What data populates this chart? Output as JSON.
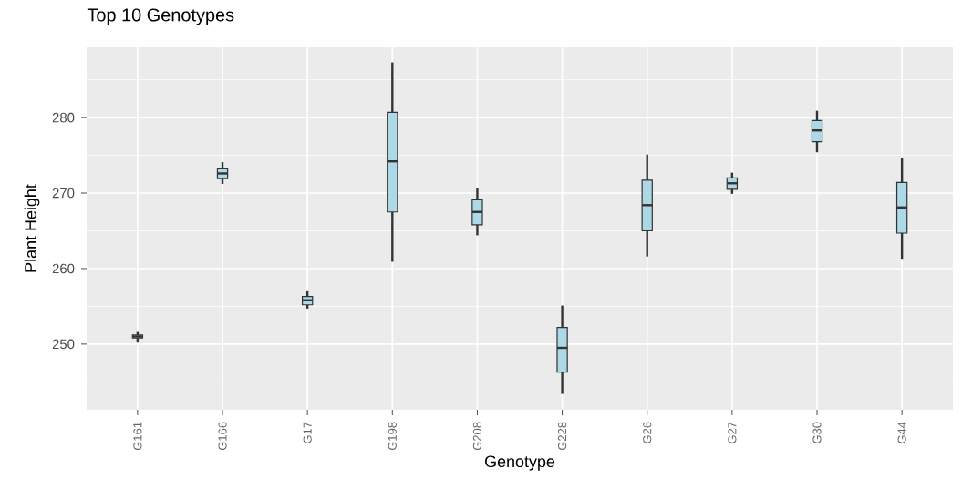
{
  "chart_data": {
    "type": "box",
    "title": "Top 10 Genotypes",
    "xlabel": "Genotype",
    "ylabel": "Plant Height",
    "categories": [
      "G161",
      "G166",
      "G17",
      "G198",
      "G208",
      "G228",
      "G26",
      "G27",
      "G30",
      "G44"
    ],
    "boxes": [
      {
        "low": 250.2,
        "q1": 250.8,
        "median": 251.0,
        "q3": 251.2,
        "high": 251.6
      },
      {
        "low": 271.2,
        "q1": 271.9,
        "median": 272.6,
        "q3": 273.2,
        "high": 274.1
      },
      {
        "low": 254.7,
        "q1": 255.2,
        "median": 255.8,
        "q3": 256.3,
        "high": 257.0
      },
      {
        "low": 260.9,
        "q1": 267.5,
        "median": 274.2,
        "q3": 280.7,
        "high": 287.3
      },
      {
        "low": 264.4,
        "q1": 265.8,
        "median": 267.5,
        "q3": 269.1,
        "high": 270.7
      },
      {
        "low": 243.4,
        "q1": 246.3,
        "median": 249.5,
        "q3": 252.2,
        "high": 255.1
      },
      {
        "low": 261.6,
        "q1": 265.0,
        "median": 268.4,
        "q3": 271.7,
        "high": 275.1
      },
      {
        "low": 269.9,
        "q1": 270.5,
        "median": 271.3,
        "q3": 272.0,
        "high": 272.7
      },
      {
        "low": 275.4,
        "q1": 276.8,
        "median": 278.3,
        "q3": 279.6,
        "high": 280.9
      },
      {
        "low": 261.3,
        "q1": 264.7,
        "median": 268.1,
        "q3": 271.4,
        "high": 274.7
      }
    ],
    "color": "#add8e6",
    "ylim": [
      241.3,
      289.3
    ],
    "yticks": [
      250,
      260,
      270,
      280
    ],
    "grid": true
  }
}
